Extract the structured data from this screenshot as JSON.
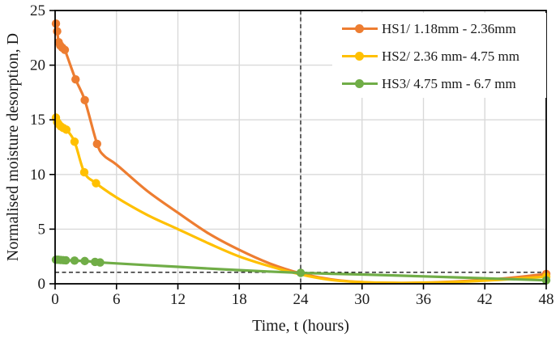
{
  "chart_data": {
    "type": "line",
    "title": "",
    "xlabel": "Time, t (hours)",
    "ylabel": "Normalised moisture desorption, D",
    "xlim": [
      0,
      48
    ],
    "ylim": [
      0,
      25
    ],
    "xticks": [
      0,
      6,
      12,
      18,
      24,
      30,
      36,
      42,
      48
    ],
    "yticks": [
      0,
      5,
      10,
      15,
      20,
      25
    ],
    "grid": true,
    "grid_color": "#d9d9d9",
    "axis_color": "#000000",
    "legend_position": "upper-right-inside",
    "reference_lines": [
      {
        "type": "vertical",
        "x": 24,
        "style": "dashed",
        "color": "#1a1a1a"
      },
      {
        "type": "horizontal",
        "y": 1.05,
        "style": "dashed",
        "color": "#1a1a1a"
      }
    ],
    "series": [
      {
        "name": "HS1/ 1.18mm - 2.36mm",
        "color": "#ED7D31",
        "smooth": true,
        "points": [
          [
            0.08,
            23.8
          ],
          [
            0.2,
            23.1
          ],
          [
            0.35,
            22.1
          ],
          [
            0.5,
            21.8
          ],
          [
            0.7,
            21.6
          ],
          [
            0.95,
            21.4
          ],
          [
            2.0,
            18.7
          ],
          [
            2.9,
            16.8
          ],
          [
            4.1,
            12.8
          ],
          [
            4.8,
            11.7
          ],
          [
            6,
            10.9
          ],
          [
            9,
            8.5
          ],
          [
            12,
            6.5
          ],
          [
            15,
            4.6
          ],
          [
            18,
            3.1
          ],
          [
            21,
            1.85
          ],
          [
            24,
            0.95
          ],
          [
            27,
            0.4
          ],
          [
            30,
            0.15
          ],
          [
            33,
            0.08
          ],
          [
            36,
            0.1
          ],
          [
            40,
            0.25
          ],
          [
            44,
            0.5
          ],
          [
            48,
            0.9
          ]
        ],
        "marker_points": [
          [
            0.08,
            23.8
          ],
          [
            0.2,
            23.1
          ],
          [
            0.35,
            22.1
          ],
          [
            0.5,
            21.8
          ],
          [
            0.7,
            21.6
          ],
          [
            0.95,
            21.4
          ],
          [
            2.0,
            18.7
          ],
          [
            2.9,
            16.8
          ],
          [
            4.1,
            12.8
          ],
          [
            48,
            0.9
          ]
        ]
      },
      {
        "name": "HS2/ 2.36 mm- 4.75 mm",
        "color": "#FFC000",
        "smooth": true,
        "points": [
          [
            0.08,
            15.2
          ],
          [
            0.2,
            14.8
          ],
          [
            0.35,
            14.6
          ],
          [
            0.55,
            14.4
          ],
          [
            0.8,
            14.25
          ],
          [
            1.1,
            14.1
          ],
          [
            1.9,
            13.0
          ],
          [
            2.85,
            10.2
          ],
          [
            4.0,
            9.2
          ],
          [
            6,
            7.9
          ],
          [
            9,
            6.3
          ],
          [
            12,
            5.0
          ],
          [
            15,
            3.7
          ],
          [
            18,
            2.5
          ],
          [
            21,
            1.6
          ],
          [
            24,
            0.85
          ],
          [
            27,
            0.35
          ],
          [
            30,
            0.15
          ],
          [
            33,
            0.08
          ],
          [
            36,
            0.1
          ],
          [
            40,
            0.2
          ],
          [
            44,
            0.4
          ],
          [
            48,
            0.65
          ]
        ],
        "marker_points": [
          [
            0.08,
            15.2
          ],
          [
            0.2,
            14.8
          ],
          [
            0.35,
            14.6
          ],
          [
            0.55,
            14.4
          ],
          [
            0.8,
            14.25
          ],
          [
            1.1,
            14.1
          ],
          [
            1.9,
            13.0
          ],
          [
            2.85,
            10.2
          ],
          [
            4.0,
            9.2
          ],
          [
            48,
            0.65
          ]
        ]
      },
      {
        "name": "HS3/ 4.75 mm - 6.7 mm",
        "color": "#70AD47",
        "smooth": true,
        "points": [
          [
            0.08,
            2.2
          ],
          [
            0.3,
            2.2
          ],
          [
            0.55,
            2.18
          ],
          [
            0.8,
            2.16
          ],
          [
            1.05,
            2.15
          ],
          [
            1.9,
            2.12
          ],
          [
            2.9,
            2.08
          ],
          [
            3.9,
            2.0
          ],
          [
            4.4,
            1.95
          ],
          [
            12,
            1.55
          ],
          [
            18,
            1.25
          ],
          [
            24,
            1.0
          ],
          [
            30,
            0.85
          ],
          [
            36,
            0.68
          ],
          [
            42,
            0.5
          ],
          [
            48,
            0.32
          ]
        ],
        "marker_points": [
          [
            0.08,
            2.2
          ],
          [
            0.3,
            2.2
          ],
          [
            0.55,
            2.18
          ],
          [
            0.8,
            2.16
          ],
          [
            1.05,
            2.15
          ],
          [
            1.9,
            2.12
          ],
          [
            2.9,
            2.08
          ],
          [
            3.9,
            2.0
          ],
          [
            4.4,
            1.95
          ],
          [
            24,
            1.0
          ],
          [
            48,
            0.32
          ]
        ]
      }
    ]
  }
}
